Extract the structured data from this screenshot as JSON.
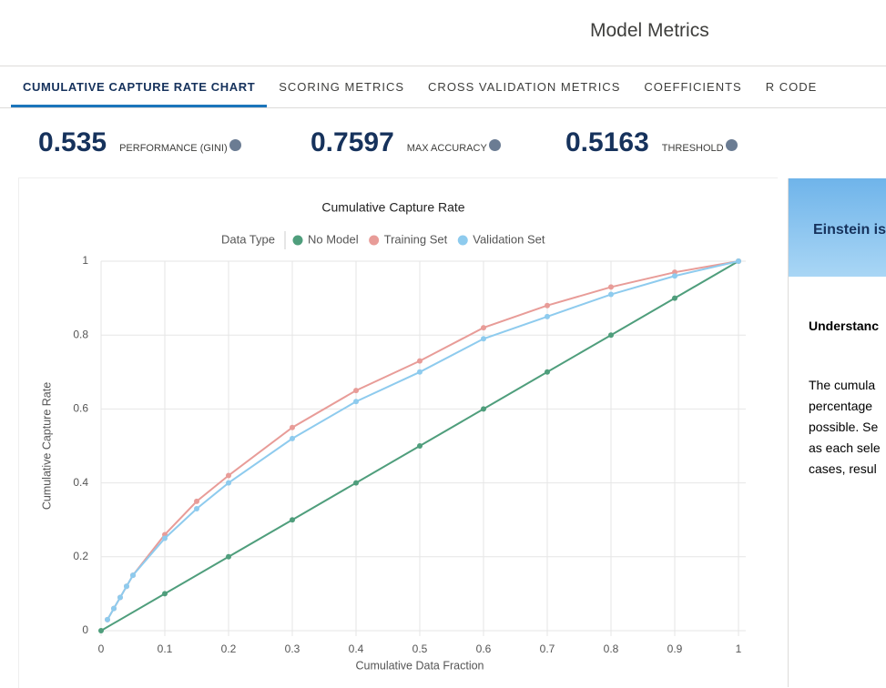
{
  "header": {
    "title": "Model Metrics"
  },
  "tabs": [
    "CUMULATIVE CAPTURE RATE CHART",
    "SCORING METRICS",
    "CROSS VALIDATION METRICS",
    "COEFFICIENTS",
    "R CODE"
  ],
  "metrics": [
    {
      "value": "0.535",
      "label": "PERFORMANCE (GINI)"
    },
    {
      "value": "0.7597",
      "label": "MAX ACCURACY"
    },
    {
      "value": "0.5163",
      "label": "THRESHOLD"
    }
  ],
  "side_panel": {
    "banner": "Einstein is",
    "heading": "Understanc",
    "lines": [
      "The cumula",
      "percentage",
      "possible. Se",
      "as each sele",
      "cases, resul"
    ]
  },
  "chart_data": {
    "type": "line",
    "title": "Cumulative Capture Rate",
    "legend_title": "Data Type",
    "x_label": "Cumulative Data Fraction",
    "y_label": "Cumulative Capture Rate",
    "xlim": [
      0,
      1
    ],
    "ylim": [
      0,
      1
    ],
    "xticks": [
      0,
      0.1,
      0.2,
      0.3,
      0.4,
      0.5,
      0.6,
      0.7,
      0.8,
      0.9,
      1
    ],
    "yticks": [
      0,
      0.2,
      0.4,
      0.6,
      0.8,
      1
    ],
    "grid": true,
    "series": [
      {
        "name": "No Model",
        "color": "#4f9e7c",
        "x": [
          0,
          0.1,
          0.2,
          0.3,
          0.4,
          0.5,
          0.6,
          0.7,
          0.8,
          0.9,
          1
        ],
        "values": [
          0,
          0.1,
          0.2,
          0.3,
          0.4,
          0.5,
          0.6,
          0.7,
          0.8,
          0.9,
          1
        ]
      },
      {
        "name": "Training Set",
        "color": "#e89c98",
        "x": [
          0.01,
          0.02,
          0.03,
          0.04,
          0.05,
          0.1,
          0.15,
          0.2,
          0.3,
          0.4,
          0.5,
          0.6,
          0.7,
          0.8,
          0.9,
          1
        ],
        "values": [
          0.03,
          0.06,
          0.09,
          0.12,
          0.15,
          0.26,
          0.35,
          0.42,
          0.55,
          0.65,
          0.73,
          0.82,
          0.88,
          0.93,
          0.97,
          1
        ]
      },
      {
        "name": "Validation Set",
        "color": "#8ecbee",
        "x": [
          0.01,
          0.02,
          0.03,
          0.04,
          0.05,
          0.1,
          0.15,
          0.2,
          0.3,
          0.4,
          0.5,
          0.6,
          0.7,
          0.8,
          0.9,
          1
        ],
        "values": [
          0.03,
          0.06,
          0.09,
          0.12,
          0.15,
          0.25,
          0.33,
          0.4,
          0.52,
          0.62,
          0.7,
          0.79,
          0.85,
          0.91,
          0.96,
          1
        ]
      }
    ]
  }
}
